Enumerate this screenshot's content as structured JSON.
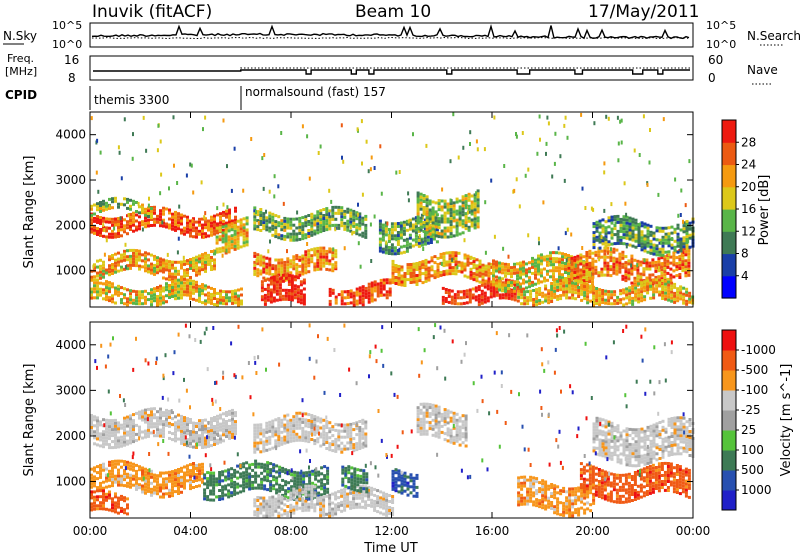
{
  "header": {
    "station": "Inuvik (fitACF)",
    "beam": "Beam 10",
    "date": "17/May/2011"
  },
  "noise_panel": {
    "left_label": "N.Sky",
    "right_label": "N.Search",
    "left_ticks": [
      "10^5",
      "10^0"
    ],
    "right_ticks": [
      "10^5",
      "10^0"
    ]
  },
  "freq_panel": {
    "left_label_line1": "Freq.",
    "left_label_line2": "[MHz]",
    "right_label": "Nave",
    "left_ticks": [
      "16",
      "8"
    ],
    "right_ticks": [
      "60",
      "0"
    ]
  },
  "cpid": {
    "label": "CPID",
    "segments": [
      {
        "name": "themis 3300",
        "start_hour": 0
      },
      {
        "name": "normalsound (fast) 157",
        "start_hour": 6
      }
    ]
  },
  "colors": {
    "power": [
      "#0000ff",
      "#1a3fa8",
      "#3f7a55",
      "#59b548",
      "#dcc81a",
      "#f59a10",
      "#ec5a12",
      "#ee1a10"
    ],
    "velocity": [
      "#ee1010",
      "#f05a14",
      "#f7961c",
      "#c8c8c8",
      "#a0a0a0",
      "#55c33a",
      "#3d7a55",
      "#2850b0",
      "#2020c8"
    ]
  },
  "chart_data": [
    {
      "type": "heatmap",
      "name": "power",
      "xlabel": "Time UT",
      "ylabel": "Slant Range [km]",
      "xlim": [
        0,
        24
      ],
      "ylim": [
        200,
        4500
      ],
      "x_ticks": [
        "00:00",
        "04:00",
        "08:00",
        "12:00",
        "16:00",
        "20:00",
        "00:00"
      ],
      "y_ticks": [
        1000,
        2000,
        3000,
        4000
      ],
      "colorbar": {
        "label": "Power [dB]",
        "ticks": [
          "4",
          "8",
          "12",
          "16",
          "20",
          "24",
          "28"
        ],
        "range": [
          0,
          30
        ]
      },
      "bands": [
        {
          "t0": 0.0,
          "t1": 5.8,
          "r0": 1850,
          "r1": 2300,
          "level": 25
        },
        {
          "t0": 0.0,
          "t1": 2.5,
          "r0": 2300,
          "r1": 2500,
          "level": 14
        },
        {
          "t0": 5.0,
          "t1": 6.2,
          "r0": 1500,
          "r1": 2100,
          "level": 18
        },
        {
          "t0": 0.0,
          "t1": 5.0,
          "r0": 900,
          "r1": 1350,
          "level": 20
        },
        {
          "t0": 0.0,
          "t1": 6.0,
          "r0": 300,
          "r1": 700,
          "level": 18
        },
        {
          "t0": 6.5,
          "t1": 9.8,
          "r0": 900,
          "r1": 1400,
          "level": 22
        },
        {
          "t0": 6.8,
          "t1": 8.5,
          "r0": 250,
          "r1": 800,
          "level": 29
        },
        {
          "t0": 6.5,
          "t1": 11.0,
          "r0": 1800,
          "r1": 2300,
          "level": 13
        },
        {
          "t0": 9.5,
          "t1": 12.0,
          "r0": 250,
          "r1": 700,
          "level": 26
        },
        {
          "t0": 11.5,
          "t1": 13.8,
          "r0": 1500,
          "r1": 2200,
          "level": 12
        },
        {
          "t0": 13.0,
          "t1": 15.5,
          "r0": 1900,
          "r1": 2700,
          "level": 14
        },
        {
          "t0": 12.0,
          "t1": 16.0,
          "r0": 800,
          "r1": 1300,
          "level": 21
        },
        {
          "t0": 14.0,
          "t1": 17.0,
          "r0": 250,
          "r1": 700,
          "level": 28
        },
        {
          "t0": 16.0,
          "t1": 20.0,
          "r0": 700,
          "r1": 1300,
          "level": 18
        },
        {
          "t0": 19.0,
          "t1": 23.8,
          "r0": 800,
          "r1": 1400,
          "level": 23
        },
        {
          "t0": 17.0,
          "t1": 24.0,
          "r0": 300,
          "r1": 700,
          "level": 19
        },
        {
          "t0": 20.0,
          "t1": 24.0,
          "r0": 1500,
          "r1": 2100,
          "level": 11
        }
      ]
    },
    {
      "type": "heatmap",
      "name": "velocity",
      "xlabel": "Time UT",
      "ylabel": "Slant Range [km]",
      "xlim": [
        0,
        24
      ],
      "ylim": [
        200,
        4500
      ],
      "x_ticks": [
        "00:00",
        "04:00",
        "08:00",
        "12:00",
        "16:00",
        "20:00",
        "00:00"
      ],
      "y_ticks": [
        1000,
        2000,
        3000,
        4000
      ],
      "colorbar": {
        "label": "Velocity [m s^-1]",
        "ticks": [
          "1000",
          "500",
          "100",
          "25",
          "-25",
          "-100",
          "-500",
          "-1000"
        ]
      },
      "bands": [
        {
          "t0": 0.0,
          "t1": 5.8,
          "r0": 1850,
          "r1": 2500,
          "cat": 3
        },
        {
          "t0": 0.0,
          "t1": 4.5,
          "r0": 800,
          "r1": 1350,
          "cat": 2
        },
        {
          "t0": 4.5,
          "t1": 9.5,
          "r0": 700,
          "r1": 1350,
          "cat": 6
        },
        {
          "t0": 6.5,
          "t1": 9.0,
          "r0": 250,
          "r1": 800,
          "cat": 3
        },
        {
          "t0": 9.0,
          "t1": 12.0,
          "r0": 300,
          "r1": 800,
          "cat": 3
        },
        {
          "t0": 10.0,
          "t1": 11.0,
          "r0": 900,
          "r1": 1400,
          "cat": 6
        },
        {
          "t0": 12.0,
          "t1": 13.0,
          "r0": 800,
          "r1": 1300,
          "cat": 7
        },
        {
          "t0": 13.0,
          "t1": 15.0,
          "r0": 1900,
          "r1": 2600,
          "cat": 3
        },
        {
          "t0": 6.5,
          "t1": 11.0,
          "r0": 1800,
          "r1": 2400,
          "cat": 3
        },
        {
          "t0": 17.0,
          "t1": 20.0,
          "r0": 400,
          "r1": 1000,
          "cat": 2
        },
        {
          "t0": 19.5,
          "t1": 23.8,
          "r0": 700,
          "r1": 1300,
          "cat": 1
        },
        {
          "t0": 0.0,
          "t1": 1.5,
          "r0": 300,
          "r1": 700,
          "cat": 1
        },
        {
          "t0": 20.0,
          "t1": 24.0,
          "r0": 1500,
          "r1": 2300,
          "cat": 3
        }
      ]
    }
  ]
}
